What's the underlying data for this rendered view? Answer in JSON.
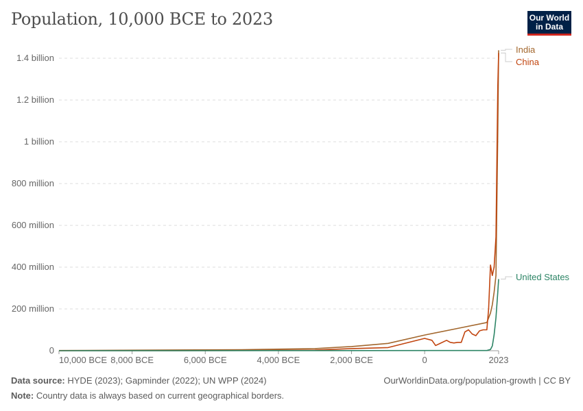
{
  "title": "Population, 10,000 BCE to 2023",
  "logo": "Our World in Data",
  "footer": {
    "source_label": "Data source:",
    "source": "HYDE (2023); Gapminder (2022); UN WPP (2024)",
    "url": "OurWorldinData.org/population-growth | CC BY",
    "note_label": "Note:",
    "note": "Country data is always based on current geographical borders."
  },
  "chart_data": {
    "type": "line",
    "title": "Population, 10,000 BCE to 2023",
    "xlim": [
      -10000,
      2023
    ],
    "ylim": [
      0,
      1400000000
    ],
    "grid": true,
    "legend": "right-inline labels",
    "y_ticks": [
      {
        "v": 0,
        "label": "0"
      },
      {
        "v": 200000000,
        "label": "200 million"
      },
      {
        "v": 400000000,
        "label": "400 million"
      },
      {
        "v": 600000000,
        "label": "600 million"
      },
      {
        "v": 800000000,
        "label": "800 million"
      },
      {
        "v": 1000000000,
        "label": "1 billion"
      },
      {
        "v": 1200000000,
        "label": "1.2 billion"
      },
      {
        "v": 1400000000,
        "label": "1.4 billion"
      }
    ],
    "x_ticks": [
      {
        "v": -10000,
        "label": "10,000 BCE"
      },
      {
        "v": -8000,
        "label": "8,000 BCE"
      },
      {
        "v": -6000,
        "label": "6,000 BCE"
      },
      {
        "v": -4000,
        "label": "4,000 BCE"
      },
      {
        "v": -2000,
        "label": "2,000 BCE"
      },
      {
        "v": 0,
        "label": "0"
      },
      {
        "v": 2023,
        "label": "2023"
      }
    ],
    "series": [
      {
        "name": "India",
        "color": "#a2662c",
        "x": [
          -10000,
          -5000,
          -3000,
          -2000,
          -1000,
          0,
          1000,
          1700,
          1800,
          1850,
          1900,
          1950,
          2000,
          2023
        ],
        "y": [
          1000000,
          5000000,
          10000000,
          20000000,
          35000000,
          75000000,
          110000000,
          135000000,
          180000000,
          220000000,
          280000000,
          360000000,
          1060000000,
          1438000000
        ]
      },
      {
        "name": "China",
        "color": "#c1440e",
        "x": [
          -10000,
          -5000,
          -3000,
          -2000,
          -1000,
          0,
          200,
          300,
          400,
          600,
          700,
          800,
          900,
          1000,
          1100,
          1200,
          1300,
          1400,
          1500,
          1600,
          1700,
          1750,
          1800,
          1850,
          1900,
          1950,
          2000,
          2023
        ],
        "y": [
          300000,
          1000000,
          3000000,
          10000000,
          15000000,
          59000000,
          50000000,
          25000000,
          33000000,
          50000000,
          40000000,
          37000000,
          40000000,
          40000000,
          90000000,
          100000000,
          80000000,
          72000000,
          95000000,
          100000000,
          100000000,
          200000000,
          410000000,
          360000000,
          400000000,
          545000000,
          1270000000,
          1425000000
        ]
      },
      {
        "name": "United States",
        "color": "#2c8465",
        "x": [
          -10000,
          1500,
          1700,
          1800,
          1850,
          1900,
          1950,
          2000,
          2023
        ],
        "y": [
          0,
          1000000,
          1000000,
          6000000,
          23000000,
          76000000,
          158000000,
          282000000,
          343000000
        ]
      }
    ]
  }
}
